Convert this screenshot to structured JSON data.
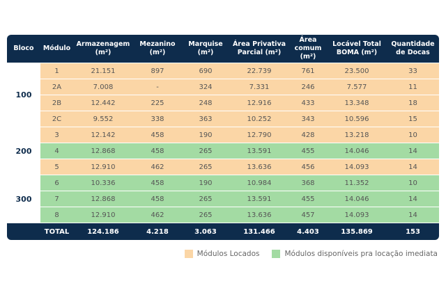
{
  "table": {
    "header": [
      "Bloco",
      "Módulo",
      "Armazenagem\n(m²)",
      "Mezanino\n(m²)",
      "Marquise\n(m²)",
      "Área Privativa\nParcial (m²)",
      "Área comum\n(m²)",
      "Locável Total\nBOMA (m²)",
      "Quantidade\nde Docas"
    ],
    "blocks": [
      {
        "label": "100",
        "rows": [
          {
            "color": "#fbd6a6",
            "cells": [
              "1",
              "21.151",
              "897",
              "690",
              "22.739",
              "761",
              "23.500",
              "33"
            ]
          },
          {
            "color": "#fbd6a6",
            "cells": [
              "2A",
              "7.008",
              "-",
              "324",
              "7.331",
              "246",
              "7.577",
              "11"
            ]
          },
          {
            "color": "#fbd6a6",
            "cells": [
              "2B",
              "12.442",
              "225",
              "248",
              "12.916",
              "433",
              "13.348",
              "18"
            ]
          },
          {
            "color": "#fbd6a6",
            "cells": [
              "2C",
              "9.552",
              "338",
              "363",
              "10.252",
              "343",
              "10.596",
              "15"
            ]
          }
        ]
      },
      {
        "label": "200",
        "rows": [
          {
            "color": "#fbd6a6",
            "cells": [
              "3",
              "12.142",
              "458",
              "190",
              "12.790",
              "428",
              "13.218",
              "10"
            ]
          },
          {
            "color": "#a3dba3",
            "cells": [
              "4",
              "12.868",
              "458",
              "265",
              "13.591",
              "455",
              "14.046",
              "14"
            ]
          },
          {
            "color": "#fbd6a6",
            "cells": [
              "5",
              "12.910",
              "462",
              "265",
              "13.636",
              "456",
              "14.093",
              "14"
            ]
          }
        ]
      },
      {
        "label": "300",
        "rows": [
          {
            "color": "#a3dba3",
            "cells": [
              "6",
              "10.336",
              "458",
              "190",
              "10.984",
              "368",
              "11.352",
              "10"
            ]
          },
          {
            "color": "#a3dba3",
            "cells": [
              "7",
              "12.868",
              "458",
              "265",
              "13.591",
              "455",
              "14.046",
              "14"
            ]
          },
          {
            "color": "#a3dba3",
            "cells": [
              "8",
              "12.910",
              "462",
              "265",
              "13.636",
              "457",
              "14.093",
              "14"
            ]
          }
        ]
      }
    ],
    "total": [
      "TOTAL",
      "124.186",
      "4.218",
      "3.063",
      "131.466",
      "4.403",
      "135.869",
      "153"
    ]
  },
  "legend": [
    {
      "label": "Módulos Locados",
      "color": "#fbd6a6"
    },
    {
      "label": "Módulos disponíveis pra locação imediata",
      "color": "#a3dba3"
    }
  ]
}
